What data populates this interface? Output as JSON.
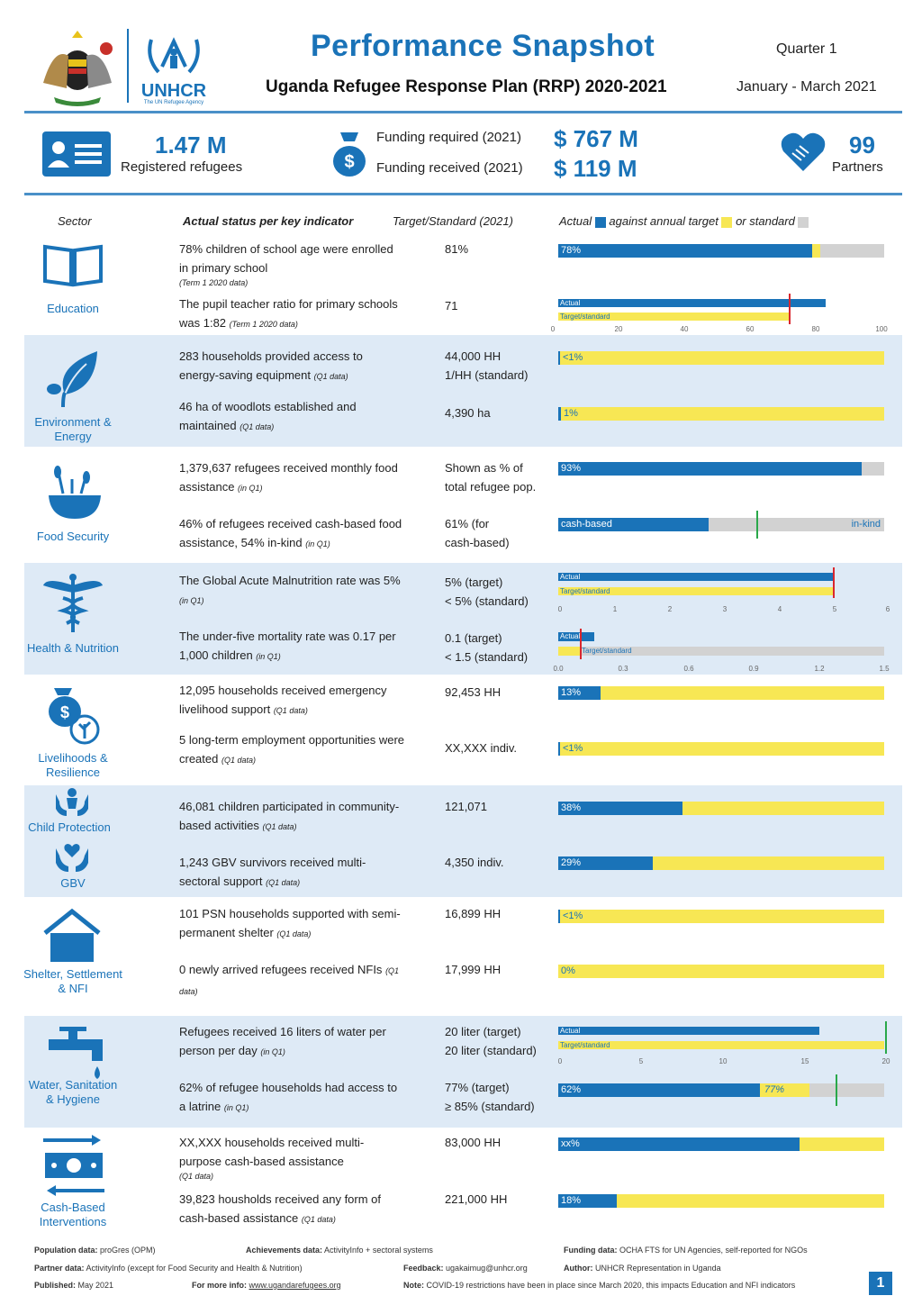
{
  "header": {
    "title": "Performance Snapshot",
    "subtitle": "Uganda Refugee Response Plan (RRP) 2020-2021",
    "quarter": "Quarter 1",
    "period": "January - March 2021",
    "unhcr_logo": "UNHCR",
    "unhcr_tagline": "The UN Refugee Agency"
  },
  "key_figures": {
    "refugees_value": "1.47 M",
    "refugees_label": "Registered refugees",
    "funding_required_label": "Funding required (2021)",
    "funding_required_value": "$ 767 M",
    "funding_received_label": "Funding received (2021)",
    "funding_received_value": "$ 119 M",
    "partners_value": "99",
    "partners_label": "Partners"
  },
  "table_header": {
    "sector": "Sector",
    "status": "Actual status per key indicator",
    "target": "Target/Standard (2021)",
    "legend_actual": "Actual",
    "legend_target": "against annual target",
    "legend_standard": "or standard"
  },
  "colors": {
    "actual": "#1a73b8",
    "target": "#f7e754",
    "standard": "#d2d2d2",
    "marker_red": "#d9272e",
    "marker_green": "#2aa84a",
    "band": "#deeaf6"
  },
  "sectors": {
    "education": "Education",
    "environment": "Environment & Energy",
    "food": "Food Security",
    "health": "Health & Nutrition",
    "livelihoods": "Livelihoods & Resilience",
    "child_protection": "Child Protection",
    "gbv": "GBV",
    "shelter": "Shelter, Settlement & NFI",
    "wash": "Water, Sanitation & Hygiene",
    "cash": "Cash-Based Interventions"
  },
  "indicators": {
    "edu1": {
      "text": "78% children of school age were enrolled in primary school",
      "note": "(Term 1 2020 data)",
      "target": "81%",
      "bar_label": "78%",
      "actual_pct": 78,
      "target_pct": 81
    },
    "edu2": {
      "text": "The pupil teacher ratio for primary schools was 1:82",
      "note": "(Term 1 2020 data)",
      "target": 71,
      "actual_label": "Actual",
      "target_label": "Target/standard",
      "actual": 82,
      "axis": [
        "0",
        "20",
        "40",
        "60",
        "80",
        "100"
      ]
    },
    "env1": {
      "text": "283 households provided access to energy-saving equipment",
      "note": "(Q1 data)",
      "target": "44,000 HH",
      "target2": "1/HH (standard)",
      "bar_label": "<1%"
    },
    "env2": {
      "text": "46 ha of woodlots established and maintained",
      "note": "(Q1 data)",
      "target": "4,390 ha",
      "bar_label": "1%"
    },
    "food1": {
      "text": "1,379,637 refugees received monthly food assistance",
      "note": "(in Q1)",
      "target": "Shown as % of",
      "target2": "total refugee pop.",
      "bar_label": "93%",
      "actual_pct": 93
    },
    "food2": {
      "text": "46% of refugees received cash-based food assistance, 54% in-kind",
      "note": "(in Q1)",
      "target": "61% (for",
      "target2": "cash-based)",
      "label_cash": "cash-based",
      "label_inkind": "in-kind",
      "cash_pct": 46,
      "target_pct": 61
    },
    "health1": {
      "text": "The Global Acute Malnutrition rate was 5%",
      "note": "(in Q1)",
      "target": "5% (target)",
      "target2": "< 5% (standard)",
      "actual_label": "Actual",
      "target_label": "Target/standard",
      "axis": [
        "0",
        "1",
        "2",
        "3",
        "4",
        "5",
        "6"
      ]
    },
    "health2": {
      "text": "The under-five mortality rate was 0.17 per 1,000 children",
      "note": "(in Q1)",
      "target": "0.1 (target)",
      "target2": "< 1.5 (standard)",
      "actual_label": "Actual",
      "target_label": "Target/standard",
      "axis": [
        "0.0",
        "0.3",
        "0.6",
        "0.9",
        "1.2",
        "1.5"
      ]
    },
    "liv1": {
      "text": "12,095 households received emergency livelihood support",
      "note": "(Q1 data)",
      "target": "92,453 HH",
      "bar_label": "13%",
      "actual_pct": 13
    },
    "liv2": {
      "text": "5 long-term employment opportunities were created",
      "note": "(Q1 data)",
      "target": "XX,XXX indiv.",
      "bar_label": "<1%"
    },
    "cp1": {
      "text": "46,081 children participated in community-based activities",
      "note": "(Q1 data)",
      "target": "121,071",
      "bar_label": "38%",
      "actual_pct": 38
    },
    "gbv1": {
      "text": "1,243 GBV survivors received multi-sectoral support",
      "note": "(Q1 data)",
      "target": "4,350 indiv.",
      "bar_label": "29%",
      "actual_pct": 29
    },
    "sh1": {
      "text": "101 PSN households supported with semi-permanent shelter",
      "note": "(Q1 data)",
      "target": "16,899 HH",
      "bar_label": "<1%"
    },
    "sh2": {
      "text": "0 newly arrived refugees received NFIs",
      "note": "(Q1 data)",
      "target": "17,999 HH",
      "bar_label": "0%"
    },
    "wash1": {
      "text": "Refugees received 16 liters of water per person per day",
      "note": "(in Q1)",
      "target": "20 liter (target)",
      "target2": "20 liter (standard)",
      "actual_label": "Actual",
      "target_label": "Target/standard",
      "axis": [
        "0",
        "5",
        "10",
        "15",
        "20"
      ]
    },
    "wash2": {
      "text": "62% of refugee households had access to a latrine",
      "note": "(in Q1)",
      "target": "77% (target)",
      "target2": "≥ 85% (standard)",
      "bar_label": "62%",
      "target_bar_label": "77%"
    },
    "cash1": {
      "text": "XX,XXX households received multi-purpose cash-based assistance",
      "note": "(Q1 data)",
      "target": "83,000 HH",
      "bar_label": "xx%"
    },
    "cash2": {
      "text": "39,823 housholds received any form of cash-based assistance",
      "note": "(Q1 data)",
      "target": "221,000 HH",
      "bar_label": "18%",
      "actual_pct": 18
    }
  },
  "footer": {
    "pop_label": "Population data:",
    "pop_val": "proGres (OPM)",
    "ach_label": "Achievements data:",
    "ach_val": "ActivityInfo + sectoral systems",
    "fund_label": "Funding data:",
    "fund_val": "OCHA FTS for UN Agencies, self-reported for NGOs",
    "partner_label": "Partner data:",
    "partner_val": "ActivityInfo (except for Food Security and Health & Nutrition)",
    "feedback_label": "Feedback:",
    "feedback_val": "ugakaimug@unhcr.org",
    "author_label": "Author:",
    "author_val": "UNHCR Representation in Uganda",
    "pub_label": "Published:",
    "pub_val": "May 2021",
    "info_label": "For more info:",
    "info_val": "www.ugandarefugees.org",
    "note_label": "Note:",
    "note_val": "COVID-19 restrictions have been in place since March 2020, this impacts Education and NFI indicators",
    "page": "1"
  }
}
